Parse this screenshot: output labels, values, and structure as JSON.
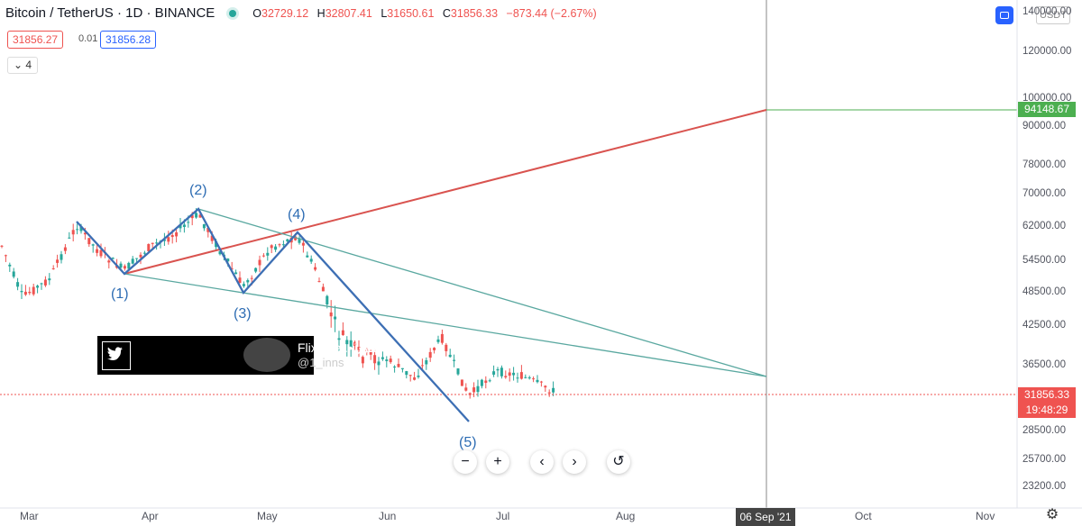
{
  "header": {
    "symbol": "Bitcoin / TetherUS · 1D · BINANCE",
    "open_label": "O",
    "open": "32729.12",
    "high_label": "H",
    "high": "32807.41",
    "low_label": "L",
    "low": "31650.61",
    "close_label": "C",
    "close": "31856.33",
    "change": "−873.44 (−2.67%)"
  },
  "bid_price": "31856.27",
  "spread": "0.01",
  "ask_price": "31856.28",
  "indicator_count": "4",
  "currency_label": "USDT",
  "price_scale_labels": [
    "140000.00",
    "120000.00",
    "100000.00",
    "90000.00",
    "78000.00",
    "70000.00",
    "62000.00",
    "54500.00",
    "48500.00",
    "42500.00",
    "36500.00",
    "28500.00",
    "25700.00",
    "23200.00"
  ],
  "target_price_tag": "94148.67",
  "last_price_tag": "31856.33",
  "countdown_tag": "19:48:29",
  "time_axis_labels": [
    "Mar",
    "Apr",
    "May",
    "Jun",
    "Jul",
    "Aug",
    "Sep",
    "Oct",
    "Nov"
  ],
  "crosshair_date": "06 Sep '21",
  "wave_labels": [
    "(1)",
    "(2)",
    "(3)",
    "(4)",
    "(5)"
  ],
  "watermark": {
    "name": "Flixable..•مـرِنْ•",
    "handle": "@1_inns"
  },
  "nav_buttons": [
    "−",
    "+",
    "‹",
    "›",
    "↺"
  ],
  "colors": {
    "up": "#26a69a",
    "down": "#ef5350",
    "wave": "#3d6fb4",
    "trend_red": "#d9534f",
    "channel": "#5aa8a0",
    "target": "#4caf50"
  },
  "icons": [
    "settings-icon",
    "twitter-icon",
    "screenshot-icon"
  ]
}
